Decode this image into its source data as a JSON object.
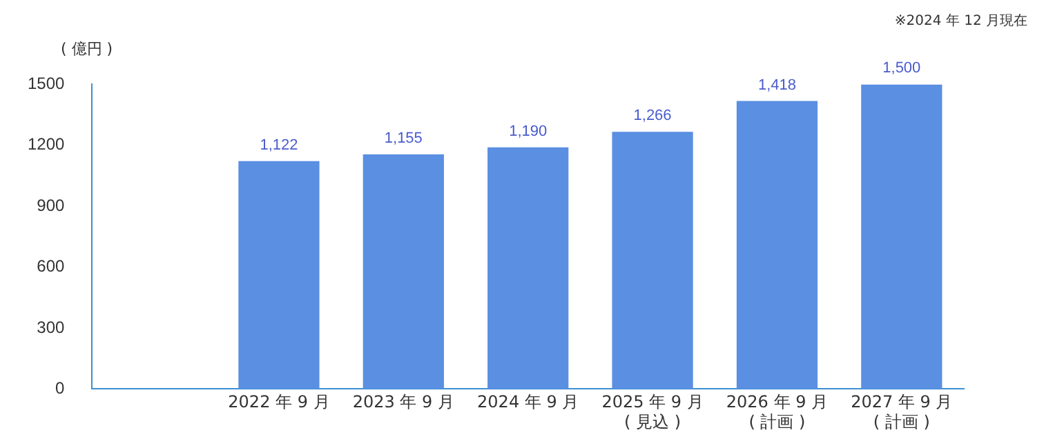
{
  "chart_data": {
    "type": "bar",
    "ylabel": "( 億円 )",
    "annotations": [
      "※2024 年 12 月現在"
    ],
    "categories": [
      null,
      "2022 年 9 月",
      "2023 年 9 月",
      "2024 年 9 月",
      "2025 年 9 月\n( 見込 )",
      "2026 年 9 月\n( 計画 )",
      "2027 年 9 月\n( 計画 )"
    ],
    "values": [
      null,
      1122,
      1155,
      1190,
      1266,
      1418,
      1500
    ],
    "color": "#5a8fe2",
    "ylim": [
      0,
      1500
    ],
    "yticks": [
      0,
      300,
      600,
      900,
      1200,
      1500
    ],
    "grid": false,
    "legend": false,
    "value_labels": [
      null,
      "1,122",
      "1,155",
      "1,190",
      "1,266",
      "1,418",
      "1,500"
    ]
  }
}
